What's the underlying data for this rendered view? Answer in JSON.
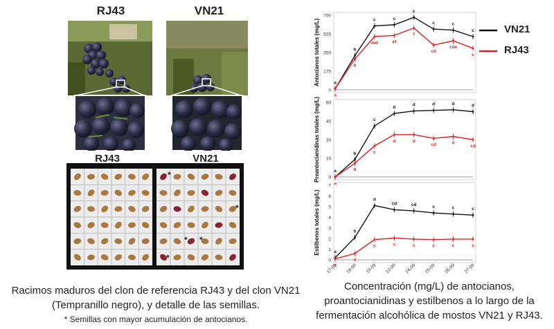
{
  "photos": {
    "top_left_label": "RJ43",
    "top_right_label": "VN21",
    "seeds_left_label": "RJ43",
    "seeds_right_label": "VN21",
    "seed_mark": "*"
  },
  "left_caption": {
    "line1": "Racimos maduros del clon de referencia RJ43 y del clon VN21",
    "line2": "(Tempranillo negro), y detalle de las semillas.",
    "note": "* Semillas con mayor acumulación de antocianos."
  },
  "right_caption": {
    "line1": "Concentración (mg/L) de antocianos,",
    "line2": "proantocianidinas y estilbenos a lo largo de la",
    "line3": "fermentación alcohólica de mostos VN21 y RJ43."
  },
  "legend": {
    "vn21": {
      "label": "VN21",
      "color": "#111111"
    },
    "rj43": {
      "label": "RJ43",
      "color": "#e02020"
    }
  },
  "chart_data": [
    {
      "type": "line",
      "ylabel": "Antocianos totales (mg/L)",
      "ylim": [
        0,
        700
      ],
      "yticks": [
        "0",
        "175",
        "350",
        "525",
        "700"
      ],
      "x": [
        "17-09",
        "18-09",
        "19-09",
        "23-09",
        "24-09",
        "25-09",
        "26-09",
        "27-09"
      ],
      "series": [
        {
          "name": "VN21",
          "values": [
            10,
            320,
            600,
            610,
            680,
            570,
            560,
            500
          ],
          "labels": [
            "a",
            "b",
            "c",
            "c",
            "c",
            "c",
            "c",
            "c"
          ]
        },
        {
          "name": "RJ43",
          "values": [
            10,
            290,
            500,
            510,
            580,
            420,
            460,
            390
          ],
          "labels": [
            "a",
            "b",
            "def",
            "ef",
            "f",
            "cd",
            "cde",
            "c"
          ]
        }
      ]
    },
    {
      "type": "line",
      "ylabel": "Proantocianidinas totales (mg/L)",
      "ylim": [
        0,
        60
      ],
      "yticks": [
        "0",
        "15",
        "30",
        "45",
        "60"
      ],
      "x": [
        "17-09",
        "18-09",
        "19-09",
        "23-09",
        "24-09",
        "25-09",
        "26-09",
        "27-09"
      ],
      "series": [
        {
          "name": "VN21",
          "values": [
            0,
            14,
            41,
            51,
            53,
            53.5,
            54,
            52.5
          ],
          "labels": [
            "a",
            "b",
            "c",
            "d",
            "d",
            "d",
            "d",
            "d"
          ]
        },
        {
          "name": "RJ43",
          "values": [
            0,
            11,
            25,
            34,
            34,
            31,
            32.5,
            30
          ],
          "labels": [
            "a",
            "b",
            "c",
            "d",
            "d",
            "cd",
            "d",
            "cd"
          ]
        }
      ]
    },
    {
      "type": "line",
      "ylabel": "Estilbenos totales (mg/L)",
      "ylim": [
        0,
        7
      ],
      "yticks": [
        "0",
        "1",
        "2",
        "3",
        "4",
        "5",
        "6",
        "7"
      ],
      "x": [
        "17-09",
        "18-09",
        "19-09",
        "23-09",
        "24-09",
        "25-09",
        "26-09",
        "27-09"
      ],
      "series": [
        {
          "name": "VN21",
          "values": [
            0.2,
            2.1,
            5.1,
            4.7,
            4.6,
            4.4,
            4.3,
            4.2
          ],
          "labels": [
            "a",
            "b",
            "d",
            "cd",
            "cd",
            "c",
            "c",
            "c"
          ]
        },
        {
          "name": "RJ43",
          "values": [
            0.1,
            0.6,
            1.9,
            2.05,
            1.95,
            1.9,
            1.95,
            1.95
          ],
          "labels": [
            "a",
            "a",
            "c",
            "c",
            "c",
            "c",
            "c",
            "c"
          ]
        }
      ]
    }
  ]
}
